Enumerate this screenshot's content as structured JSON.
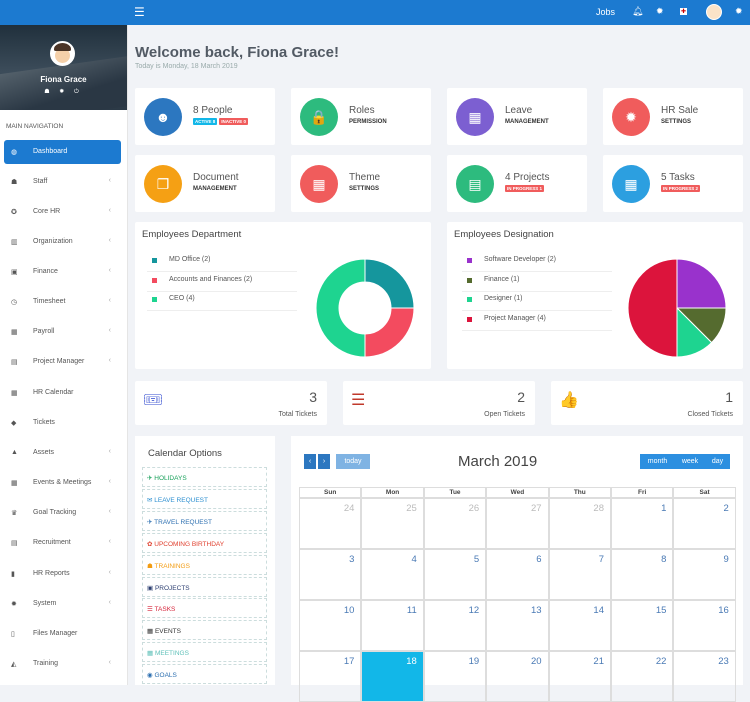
{
  "topbar": {
    "jobs": "Jobs"
  },
  "user": {
    "name": "Fiona Grace"
  },
  "sidebar": {
    "label": "MAIN NAVIGATION",
    "items": [
      {
        "label": "Dashboard",
        "icon": "dashboard-icon",
        "glyph": "◍",
        "chevron": ""
      },
      {
        "label": "Staff",
        "icon": "user-icon",
        "glyph": "☗",
        "chevron": "‹"
      },
      {
        "label": "Core HR",
        "icon": "crosshair-icon",
        "glyph": "✪",
        "chevron": "‹"
      },
      {
        "label": "Organization",
        "icon": "building-icon",
        "glyph": "▥",
        "chevron": "‹"
      },
      {
        "label": "Finance",
        "icon": "money-icon",
        "glyph": "▣",
        "chevron": "‹"
      },
      {
        "label": "Timesheet",
        "icon": "clock-icon",
        "glyph": "◷",
        "chevron": "‹"
      },
      {
        "label": "Payroll",
        "icon": "calculator-icon",
        "glyph": "▦",
        "chevron": "‹"
      },
      {
        "label": "Project Manager",
        "icon": "tasks-icon",
        "glyph": "▤",
        "chevron": "‹"
      },
      {
        "label": "HR Calendar",
        "icon": "calendar-icon",
        "glyph": "▦",
        "chevron": ""
      },
      {
        "label": "Tickets",
        "icon": "ticket-icon",
        "glyph": "◆",
        "chevron": ""
      },
      {
        "label": "Assets",
        "icon": "flask-icon",
        "glyph": "▲",
        "chevron": "‹"
      },
      {
        "label": "Events & Meetings",
        "icon": "calendar-check-icon",
        "glyph": "▦",
        "chevron": "‹"
      },
      {
        "label": "Goal Tracking",
        "icon": "trophy-icon",
        "glyph": "♛",
        "chevron": "‹"
      },
      {
        "label": "Recruitment",
        "icon": "newspaper-icon",
        "glyph": "▤",
        "chevron": "‹"
      },
      {
        "label": "HR Reports",
        "icon": "bar-chart-icon",
        "glyph": "▮",
        "chevron": "‹"
      },
      {
        "label": "System",
        "icon": "gear-icon",
        "glyph": "✹",
        "chevron": "‹"
      },
      {
        "label": "Files Manager",
        "icon": "file-icon",
        "glyph": "▯",
        "chevron": ""
      },
      {
        "label": "Training",
        "icon": "graduation-cap-icon",
        "glyph": "◭",
        "chevron": "‹"
      }
    ]
  },
  "welcome": {
    "title": "Welcome back, Fiona Grace!",
    "date": "Today is Monday, 18 March 2019"
  },
  "cards": [
    {
      "title": "8 People",
      "sub": "",
      "badges": [
        "ACTIVE 8",
        "INACTIVE 0"
      ],
      "color": "#2c77c0",
      "icon": "users-icon",
      "glyph": "☻"
    },
    {
      "title": "Roles",
      "sub": "PERMISSION",
      "badges": [],
      "color": "#2dbb7e",
      "icon": "lock-icon",
      "glyph": "🔒"
    },
    {
      "title": "Leave",
      "sub": "MANAGEMENT",
      "badges": [],
      "color": "#7c5fd1",
      "icon": "calendar-icon",
      "glyph": "▦"
    },
    {
      "title": "HR Sale",
      "sub": "SETTINGS",
      "badges": [],
      "color": "#f05c5c",
      "icon": "gear-icon",
      "glyph": "✹"
    },
    {
      "title": "Document",
      "sub": "MANAGEMENT",
      "badges": [],
      "color": "#f5a014",
      "icon": "copy-icon",
      "glyph": "❐"
    },
    {
      "title": "Theme",
      "sub": "SETTINGS",
      "badges": [],
      "color": "#f05c5c",
      "icon": "table-icon",
      "glyph": "▦"
    },
    {
      "title": "4 Projects",
      "sub": "",
      "badges": [
        "IN PROGRESS 1"
      ],
      "color": "#2dbb7e",
      "icon": "server-icon",
      "glyph": "▤"
    },
    {
      "title": "5 Tasks",
      "sub": "",
      "badges": [
        "IN PROGRESS 2"
      ],
      "color": "#2c9fe0",
      "icon": "calendar-check-icon",
      "glyph": "▦"
    }
  ],
  "badge_colors": {
    "ACTIVE 8": "#12b7e8",
    "INACTIVE 0": "#f05c5c",
    "IN PROGRESS 1": "#f05c5c",
    "IN PROGRESS 2": "#f05c5c"
  },
  "departments": {
    "title": "Employees Department",
    "items": [
      {
        "label": "MD Office (2)",
        "value": 2,
        "color": "#15969d"
      },
      {
        "label": "Accounts and Finances (2)",
        "value": 2,
        "color": "#f34b5f"
      },
      {
        "label": "CEO (4)",
        "value": 4,
        "color": "#1ed490"
      }
    ]
  },
  "designations": {
    "title": "Employees Designation",
    "items": [
      {
        "label": "Software Developer (2)",
        "value": 2,
        "color": "#9932cc"
      },
      {
        "label": "Finance (1)",
        "value": 1,
        "color": "#556b2f"
      },
      {
        "label": "Designer (1)",
        "value": 1,
        "color": "#1ed490"
      },
      {
        "label": "Project Manager (4)",
        "value": 4,
        "color": "#dc143c"
      }
    ]
  },
  "tickets": [
    {
      "num": "3",
      "label": "Total Tickets",
      "icon": "ticket-icon",
      "glyph": "🎟",
      "color": "#5b6fd9"
    },
    {
      "num": "2",
      "label": "Open Tickets",
      "icon": "tasks-icon",
      "glyph": "☰",
      "color": "#c0392b"
    },
    {
      "num": "1",
      "label": "Closed Tickets",
      "icon": "thumbs-up-icon",
      "glyph": "👍",
      "color": "#2e8b57"
    }
  ],
  "calendar_options": {
    "title": "Calendar Options",
    "events": [
      {
        "label": "HOLIDAYS",
        "glyph": "✈",
        "color": "#18a05a"
      },
      {
        "label": "LEAVE REQUEST",
        "glyph": "✉",
        "color": "#2c8fd0"
      },
      {
        "label": "TRAVEL REQUEST",
        "glyph": "✈",
        "color": "#2c6fb0"
      },
      {
        "label": "UPCOMING BIRTHDAY",
        "glyph": "✿",
        "color": "#e0402f"
      },
      {
        "label": "TRAININGS",
        "glyph": "☗",
        "color": "#f39c12"
      },
      {
        "label": "PROJECTS",
        "glyph": "▣",
        "color": "#2c3e70"
      },
      {
        "label": "TASKS",
        "glyph": "☰",
        "color": "#d6243a"
      },
      {
        "label": "EVENTS",
        "glyph": "▦",
        "color": "#333333"
      },
      {
        "label": "MEETINGS",
        "glyph": "▦",
        "color": "#5ec0b8"
      },
      {
        "label": "GOALS",
        "glyph": "◉",
        "color": "#2c6fb0"
      }
    ]
  },
  "calendar": {
    "title": "March 2019",
    "today_btn": "today",
    "month_btn": "month",
    "week_btn": "week",
    "day_btn": "day",
    "prev": "‹",
    "next": "›",
    "dow": [
      "Sun",
      "Mon",
      "Tue",
      "Wed",
      "Thu",
      "Fri",
      "Sat"
    ],
    "weeks": [
      [
        {
          "d": "24",
          "o": true
        },
        {
          "d": "25",
          "o": true
        },
        {
          "d": "26",
          "o": true
        },
        {
          "d": "27",
          "o": true
        },
        {
          "d": "28",
          "o": true
        },
        {
          "d": "1"
        },
        {
          "d": "2"
        }
      ],
      [
        {
          "d": "3"
        },
        {
          "d": "4"
        },
        {
          "d": "5"
        },
        {
          "d": "6"
        },
        {
          "d": "7"
        },
        {
          "d": "8"
        },
        {
          "d": "9"
        }
      ],
      [
        {
          "d": "10"
        },
        {
          "d": "11"
        },
        {
          "d": "12"
        },
        {
          "d": "13"
        },
        {
          "d": "14"
        },
        {
          "d": "15"
        },
        {
          "d": "16"
        }
      ],
      [
        {
          "d": "17"
        },
        {
          "d": "18",
          "today": true
        },
        {
          "d": "19"
        },
        {
          "d": "20"
        },
        {
          "d": "21"
        },
        {
          "d": "22"
        },
        {
          "d": "23"
        }
      ]
    ]
  }
}
